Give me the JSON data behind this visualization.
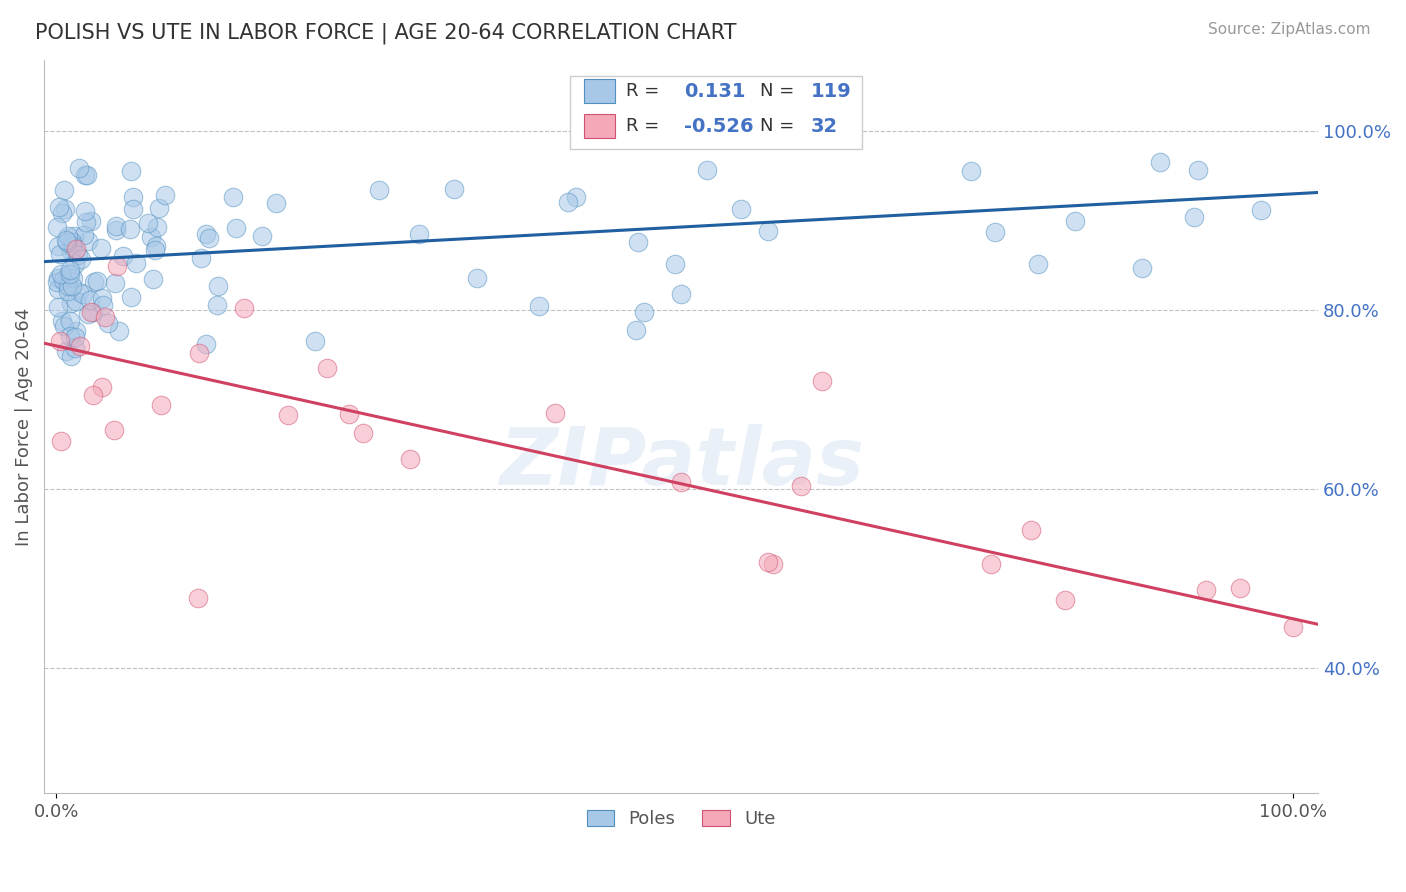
{
  "title": "POLISH VS UTE IN LABOR FORCE | AGE 20-64 CORRELATION CHART",
  "source": "Source: ZipAtlas.com",
  "ylabel": "In Labor Force | Age 20-64",
  "y_tick_labels": [
    "40.0%",
    "60.0%",
    "80.0%",
    "100.0%"
  ],
  "y_tick_values": [
    0.4,
    0.6,
    0.8,
    1.0
  ],
  "blue_R": 0.131,
  "blue_N": 119,
  "pink_R": -0.526,
  "pink_N": 32,
  "blue_color": "#a8c8e8",
  "pink_color": "#f4a8b8",
  "blue_edge_color": "#5090c0",
  "pink_edge_color": "#d05070",
  "blue_line_color": "#2060a0",
  "pink_line_color": "#d04060",
  "watermark": "ZIPatlas",
  "background_color": "#ffffff",
  "grid_color": "#bbbbbb",
  "title_color": "#333333",
  "legend_text_color": "#333333",
  "legend_num_color": "#4472c4",
  "right_label_color": "#4472c4",
  "seed": 7,
  "blue_line_x0": 0.0,
  "blue_line_y0": 0.855,
  "blue_line_x1": 1.0,
  "blue_line_y1": 0.93,
  "pink_line_x0": 0.0,
  "pink_line_y0": 0.76,
  "pink_line_x1": 1.0,
  "pink_line_y1": 0.455,
  "ylim_min": 0.26,
  "ylim_max": 1.08,
  "xlim_min": -0.01,
  "xlim_max": 1.02
}
